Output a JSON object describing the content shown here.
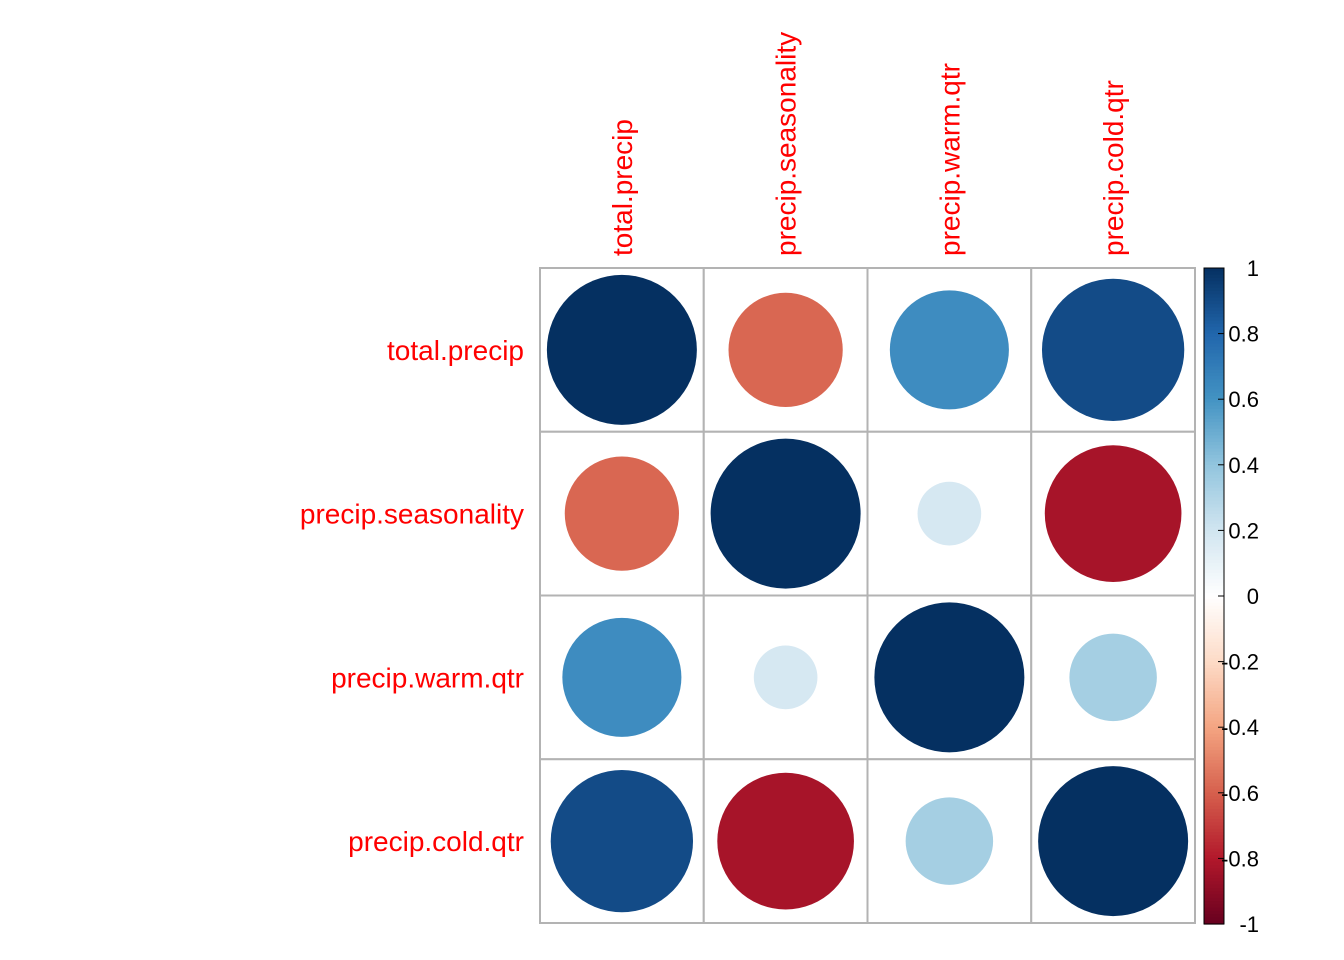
{
  "chart_data": {
    "type": "heatmap",
    "variables": [
      "total.precip",
      "precip.seasonality",
      "precip.warm.qtr",
      "precip.cold.qtr"
    ],
    "matrix": [
      [
        1.0,
        -0.58,
        0.63,
        0.9
      ],
      [
        -0.58,
        1.0,
        0.18,
        -0.83
      ],
      [
        0.63,
        0.18,
        1.0,
        0.34
      ],
      [
        0.9,
        -0.83,
        0.34,
        1.0
      ]
    ],
    "colorbar": {
      "range": [
        -1,
        1
      ],
      "ticks": [
        "1",
        "0.8",
        "0.6",
        "0.4",
        "0.2",
        "0",
        "-0.2",
        "-0.4",
        "-0.6",
        "-0.8",
        "-1"
      ]
    },
    "colors": {
      "label": "#ff0000",
      "grid": "#b3b3b3",
      "scale": [
        "#67001f",
        "#b2182b",
        "#d6604d",
        "#f4a582",
        "#fddbc7",
        "#ffffff",
        "#d1e5f0",
        "#92c5de",
        "#4393c3",
        "#2166ac",
        "#053061"
      ]
    },
    "legend_position": "right"
  }
}
